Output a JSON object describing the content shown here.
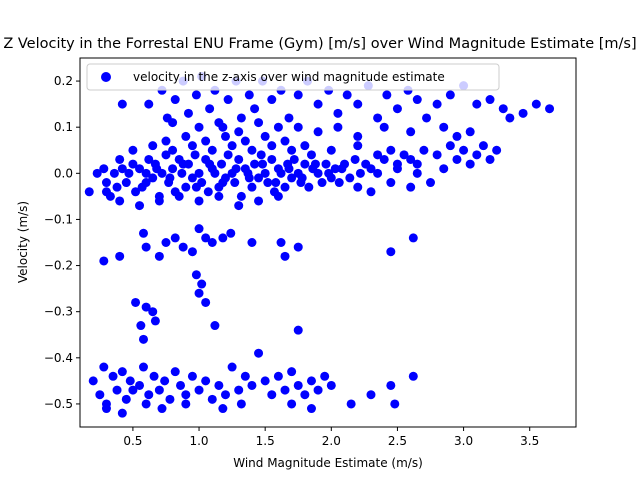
{
  "chart_data": {
    "type": "scatter",
    "title": "Z Velocity in the Forrestal ENU Frame (Gym) [m/s] over Wind Magnitude Estimate [m/s]",
    "xlabel": "Wind Magnitude Estimate (m/s)",
    "ylabel": "Velocity (m/s)",
    "xlim": [
      0.1,
      3.85
    ],
    "ylim": [
      -0.55,
      0.25
    ],
    "xticks": [
      0.5,
      1.0,
      1.5,
      2.0,
      2.5,
      3.0,
      3.5
    ],
    "xtick_labels": [
      "0.5",
      "1.0",
      "1.5",
      "2.0",
      "2.5",
      "3.0",
      "3.5"
    ],
    "yticks": [
      -0.5,
      -0.4,
      -0.3,
      -0.2,
      -0.1,
      0.0,
      0.1,
      0.2
    ],
    "ytick_labels": [
      "−0.5",
      "−0.4",
      "−0.3",
      "−0.2",
      "−0.1",
      "0.0",
      "0.1",
      "0.2"
    ],
    "legend_position": "top-left",
    "grid": false,
    "series": [
      {
        "name": "velocity in the z-axis over wind magnitude estimate",
        "color": "#0000ff",
        "marker": "circle",
        "points": [
          [
            0.17,
            -0.04
          ],
          [
            0.23,
            0.0
          ],
          [
            0.28,
            0.01
          ],
          [
            0.3,
            -0.02
          ],
          [
            0.33,
            -0.05
          ],
          [
            0.36,
            0.0
          ],
          [
            0.38,
            -0.03
          ],
          [
            0.4,
            0.03
          ],
          [
            0.42,
            0.01
          ],
          [
            0.45,
            -0.02
          ],
          [
            0.47,
            0.0
          ],
          [
            0.5,
            0.02
          ],
          [
            0.52,
            -0.04
          ],
          [
            0.55,
            0.01
          ],
          [
            0.57,
            -0.03
          ],
          [
            0.6,
            0.0
          ],
          [
            0.62,
            0.03
          ],
          [
            0.65,
            -0.01
          ],
          [
            0.67,
            0.02
          ],
          [
            0.7,
            -0.05
          ],
          [
            0.72,
            0.0
          ],
          [
            0.75,
            0.04
          ],
          [
            0.77,
            -0.02
          ],
          [
            0.8,
            0.01
          ],
          [
            0.82,
            -0.04
          ],
          [
            0.85,
            0.03
          ],
          [
            0.87,
            0.0
          ],
          [
            0.9,
            -0.03
          ],
          [
            0.92,
            0.02
          ],
          [
            0.95,
            -0.01
          ],
          [
            0.97,
            0.04
          ],
          [
            1.0,
            0.0
          ],
          [
            1.02,
            -0.02
          ],
          [
            1.05,
            0.03
          ],
          [
            1.07,
            -0.04
          ],
          [
            1.1,
            0.01
          ],
          [
            1.12,
            0.0
          ],
          [
            1.15,
            -0.03
          ],
          [
            1.17,
            0.02
          ],
          [
            1.2,
            -0.01
          ],
          [
            1.22,
            0.04
          ],
          [
            1.25,
            0.0
          ],
          [
            1.27,
            -0.02
          ],
          [
            1.3,
            0.03
          ],
          [
            1.32,
            -0.05
          ],
          [
            1.35,
            0.01
          ],
          [
            1.37,
            0.0
          ],
          [
            1.4,
            -0.03
          ],
          [
            1.42,
            0.02
          ],
          [
            1.45,
            -0.01
          ],
          [
            1.47,
            0.04
          ],
          [
            1.5,
            0.0
          ],
          [
            1.52,
            -0.02
          ],
          [
            1.55,
            0.03
          ],
          [
            1.57,
            -0.04
          ],
          [
            1.6,
            0.01
          ],
          [
            1.62,
            0.0
          ],
          [
            1.65,
            -0.03
          ],
          [
            1.67,
            0.02
          ],
          [
            1.7,
            -0.01
          ],
          [
            1.72,
            0.03
          ],
          [
            1.75,
            0.0
          ],
          [
            1.77,
            -0.02
          ],
          [
            1.8,
            0.02
          ],
          [
            1.83,
            -0.03
          ],
          [
            1.86,
            0.01
          ],
          [
            1.9,
            0.0
          ],
          [
            1.93,
            -0.02
          ],
          [
            1.96,
            0.02
          ],
          [
            2.0,
            -0.01
          ],
          [
            2.03,
            0.01
          ],
          [
            2.06,
            -0.02
          ],
          [
            2.1,
            0.02
          ],
          [
            2.14,
            -0.01
          ],
          [
            2.18,
            0.03
          ],
          [
            2.22,
            0.0
          ],
          [
            2.26,
            0.02
          ],
          [
            2.3,
            0.01
          ],
          [
            2.35,
            0.04
          ],
          [
            2.4,
            0.03
          ],
          [
            2.45,
            0.05
          ],
          [
            2.5,
            0.02
          ],
          [
            2.55,
            0.04
          ],
          [
            2.6,
            0.03
          ],
          [
            2.65,
            0.0
          ],
          [
            2.7,
            0.05
          ],
          [
            2.75,
            -0.02
          ],
          [
            2.8,
            0.04
          ],
          [
            2.85,
            0.01
          ],
          [
            2.9,
            0.06
          ],
          [
            2.95,
            0.03
          ],
          [
            3.0,
            0.05
          ],
          [
            3.05,
            0.02
          ],
          [
            3.1,
            0.04
          ],
          [
            3.15,
            0.06
          ],
          [
            3.2,
            0.03
          ],
          [
            3.25,
            0.05
          ],
          [
            2.3,
            -0.04
          ],
          [
            2.45,
            -0.02
          ],
          [
            2.6,
            -0.03
          ],
          [
            0.3,
            -0.04
          ],
          [
            0.4,
            -0.06
          ],
          [
            0.55,
            -0.07
          ],
          [
            0.7,
            -0.06
          ],
          [
            0.85,
            -0.05
          ],
          [
            1.0,
            -0.06
          ],
          [
            1.15,
            -0.05
          ],
          [
            1.3,
            -0.07
          ],
          [
            1.45,
            -0.06
          ],
          [
            1.6,
            -0.05
          ],
          [
            0.5,
            0.05
          ],
          [
            0.65,
            0.06
          ],
          [
            0.8,
            0.05
          ],
          [
            0.95,
            0.06
          ],
          [
            1.1,
            0.05
          ],
          [
            1.25,
            0.06
          ],
          [
            1.4,
            0.05
          ],
          [
            1.55,
            0.06
          ],
          [
            1.7,
            0.05
          ],
          [
            1.85,
            0.04
          ],
          [
            0.75,
            0.07
          ],
          [
            0.9,
            0.08
          ],
          [
            1.05,
            0.07
          ],
          [
            1.2,
            0.08
          ],
          [
            1.35,
            0.07
          ],
          [
            1.5,
            0.08
          ],
          [
            1.65,
            0.07
          ],
          [
            1.8,
            0.06
          ],
          [
            2.0,
            0.05
          ],
          [
            2.2,
            0.06
          ],
          [
            0.6,
            -0.02
          ],
          [
            0.68,
            0.01
          ],
          [
            0.78,
            -0.01
          ],
          [
            0.88,
            0.02
          ],
          [
            0.98,
            -0.03
          ],
          [
            1.08,
            0.02
          ],
          [
            1.18,
            -0.02
          ],
          [
            1.28,
            0.01
          ],
          [
            1.38,
            -0.01
          ],
          [
            1.48,
            0.02
          ],
          [
            1.58,
            -0.02
          ],
          [
            1.68,
            0.01
          ],
          [
            1.78,
            -0.01
          ],
          [
            1.88,
            0.02
          ],
          [
            1.98,
            0.0
          ],
          [
            2.08,
            0.01
          ],
          [
            2.2,
            -0.03
          ],
          [
            2.35,
            0.0
          ],
          [
            2.5,
            0.01
          ],
          [
            2.65,
            0.02
          ],
          [
            0.42,
            0.15
          ],
          [
            0.62,
            0.15
          ],
          [
            0.72,
            0.18
          ],
          [
            0.76,
            0.12
          ],
          [
            0.82,
            0.16
          ],
          [
            0.88,
            0.2
          ],
          [
            0.92,
            0.13
          ],
          [
            0.98,
            0.17
          ],
          [
            1.02,
            0.21
          ],
          [
            1.08,
            0.14
          ],
          [
            1.12,
            0.18
          ],
          [
            1.18,
            0.1
          ],
          [
            1.22,
            0.16
          ],
          [
            1.28,
            0.2
          ],
          [
            1.32,
            0.12
          ],
          [
            1.38,
            0.17
          ],
          [
            1.42,
            0.14
          ],
          [
            1.48,
            0.2
          ],
          [
            1.55,
            0.16
          ],
          [
            1.62,
            0.18
          ],
          [
            1.68,
            0.12
          ],
          [
            1.75,
            0.17
          ],
          [
            1.82,
            0.2
          ],
          [
            1.9,
            0.15
          ],
          [
            1.98,
            0.18
          ],
          [
            2.05,
            0.13
          ],
          [
            2.12,
            0.17
          ],
          [
            2.2,
            0.15
          ],
          [
            2.28,
            0.19
          ],
          [
            2.35,
            0.12
          ],
          [
            2.42,
            0.17
          ],
          [
            2.5,
            0.14
          ],
          [
            2.58,
            0.18
          ],
          [
            2.65,
            0.16
          ],
          [
            2.72,
            0.12
          ],
          [
            2.8,
            0.15
          ],
          [
            2.9,
            0.17
          ],
          [
            3.0,
            0.19
          ],
          [
            3.1,
            0.15
          ],
          [
            3.2,
            0.16
          ],
          [
            3.3,
            0.14
          ],
          [
            3.45,
            0.13
          ],
          [
            3.55,
            0.15
          ],
          [
            3.65,
            0.14
          ],
          [
            2.85,
            0.1
          ],
          [
            2.95,
            0.08
          ],
          [
            3.05,
            0.09
          ],
          [
            3.35,
            0.12
          ],
          [
            2.4,
            0.1
          ],
          [
            2.6,
            0.09
          ],
          [
            1.0,
            0.1
          ],
          [
            1.3,
            0.09
          ],
          [
            1.6,
            0.1
          ],
          [
            1.9,
            0.09
          ],
          [
            2.2,
            0.08
          ],
          [
            0.8,
            0.11
          ],
          [
            1.15,
            0.11
          ],
          [
            1.45,
            0.11
          ],
          [
            1.75,
            0.1
          ],
          [
            2.05,
            0.1
          ],
          [
            0.28,
            -0.19
          ],
          [
            0.4,
            -0.18
          ],
          [
            0.58,
            -0.13
          ],
          [
            0.6,
            -0.16
          ],
          [
            0.7,
            -0.18
          ],
          [
            0.75,
            -0.15
          ],
          [
            0.82,
            -0.14
          ],
          [
            0.88,
            -0.16
          ],
          [
            0.95,
            -0.17
          ],
          [
            1.0,
            -0.12
          ],
          [
            1.05,
            -0.14
          ],
          [
            1.1,
            -0.15
          ],
          [
            1.18,
            -0.14
          ],
          [
            1.24,
            -0.13
          ],
          [
            1.4,
            -0.15
          ],
          [
            1.62,
            -0.15
          ],
          [
            1.75,
            -0.16
          ],
          [
            2.45,
            -0.17
          ],
          [
            2.62,
            -0.14
          ],
          [
            1.65,
            -0.18
          ],
          [
            0.98,
            -0.22
          ],
          [
            1.0,
            -0.26
          ],
          [
            1.02,
            -0.24
          ],
          [
            0.52,
            -0.28
          ],
          [
            0.6,
            -0.29
          ],
          [
            0.65,
            -0.3
          ],
          [
            0.67,
            -0.32
          ],
          [
            1.05,
            -0.28
          ],
          [
            1.12,
            -0.33
          ],
          [
            0.56,
            -0.33
          ],
          [
            1.75,
            -0.34
          ],
          [
            0.58,
            -0.36
          ],
          [
            0.2,
            -0.45
          ],
          [
            0.25,
            -0.48
          ],
          [
            0.28,
            -0.42
          ],
          [
            0.3,
            -0.5
          ],
          [
            0.35,
            -0.44
          ],
          [
            0.38,
            -0.47
          ],
          [
            0.42,
            -0.43
          ],
          [
            0.45,
            -0.49
          ],
          [
            0.48,
            -0.45
          ],
          [
            0.5,
            -0.47
          ],
          [
            0.55,
            -0.46
          ],
          [
            0.58,
            -0.42
          ],
          [
            0.62,
            -0.48
          ],
          [
            0.66,
            -0.44
          ],
          [
            0.7,
            -0.47
          ],
          [
            0.74,
            -0.45
          ],
          [
            0.78,
            -0.49
          ],
          [
            0.82,
            -0.43
          ],
          [
            0.86,
            -0.46
          ],
          [
            0.9,
            -0.48
          ],
          [
            0.95,
            -0.44
          ],
          [
            1.0,
            -0.47
          ],
          [
            1.05,
            -0.45
          ],
          [
            1.1,
            -0.49
          ],
          [
            1.15,
            -0.46
          ],
          [
            1.2,
            -0.48
          ],
          [
            1.25,
            -0.42
          ],
          [
            1.3,
            -0.47
          ],
          [
            1.35,
            -0.44
          ],
          [
            1.4,
            -0.46
          ],
          [
            1.45,
            -0.39
          ],
          [
            1.5,
            -0.45
          ],
          [
            1.55,
            -0.48
          ],
          [
            1.6,
            -0.44
          ],
          [
            1.65,
            -0.47
          ],
          [
            1.7,
            -0.43
          ],
          [
            1.75,
            -0.46
          ],
          [
            1.8,
            -0.48
          ],
          [
            1.85,
            -0.45
          ],
          [
            1.9,
            -0.47
          ],
          [
            1.95,
            -0.44
          ],
          [
            2.0,
            -0.46
          ],
          [
            2.15,
            -0.5
          ],
          [
            2.3,
            -0.48
          ],
          [
            2.45,
            -0.46
          ],
          [
            2.48,
            -0.5
          ],
          [
            2.62,
            -0.44
          ],
          [
            0.3,
            -0.51
          ],
          [
            0.42,
            -0.52
          ],
          [
            0.9,
            -0.5
          ],
          [
            1.18,
            -0.51
          ],
          [
            1.32,
            -0.5
          ],
          [
            1.7,
            -0.5
          ],
          [
            1.85,
            -0.51
          ],
          [
            0.6,
            -0.5
          ],
          [
            0.72,
            -0.51
          ]
        ]
      }
    ]
  }
}
